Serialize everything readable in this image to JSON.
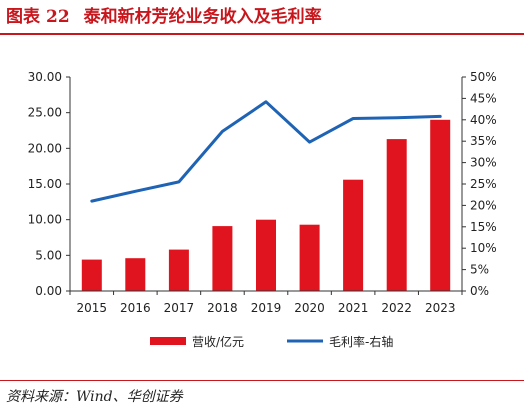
{
  "figure": {
    "label": "图表",
    "number": "22",
    "title": "泰和新材芳纶业务收入及毛利率"
  },
  "source": "资料来源：Wind、华创证券",
  "colors": {
    "bar": "#e0141e",
    "line": "#1f63b4",
    "accent": "#c8161d"
  },
  "chart_data": {
    "type": "bar",
    "categories": [
      "2015",
      "2016",
      "2017",
      "2018",
      "2019",
      "2020",
      "2021",
      "2022",
      "2023"
    ],
    "series": [
      {
        "name": "营收/亿元",
        "type": "bar",
        "axis": "left",
        "values": [
          4.4,
          4.6,
          5.8,
          9.1,
          10.0,
          9.3,
          15.6,
          21.3,
          24.0
        ]
      },
      {
        "name": "毛利率-右轴",
        "type": "line",
        "axis": "right",
        "values": [
          21.0,
          23.3,
          25.5,
          37.3,
          44.2,
          34.8,
          40.3,
          40.5,
          40.8
        ]
      }
    ],
    "y_left": {
      "min": 0,
      "max": 30,
      "step": 5,
      "ticks": [
        "0.00",
        "5.00",
        "10.00",
        "15.00",
        "20.00",
        "25.00",
        "30.00"
      ]
    },
    "y_right": {
      "min": 0,
      "max": 50,
      "step": 5,
      "ticks": [
        "0%",
        "5%",
        "10%",
        "15%",
        "20%",
        "25%",
        "30%",
        "35%",
        "40%",
        "45%",
        "50%"
      ]
    },
    "grid": false,
    "legend_position": "bottom"
  }
}
